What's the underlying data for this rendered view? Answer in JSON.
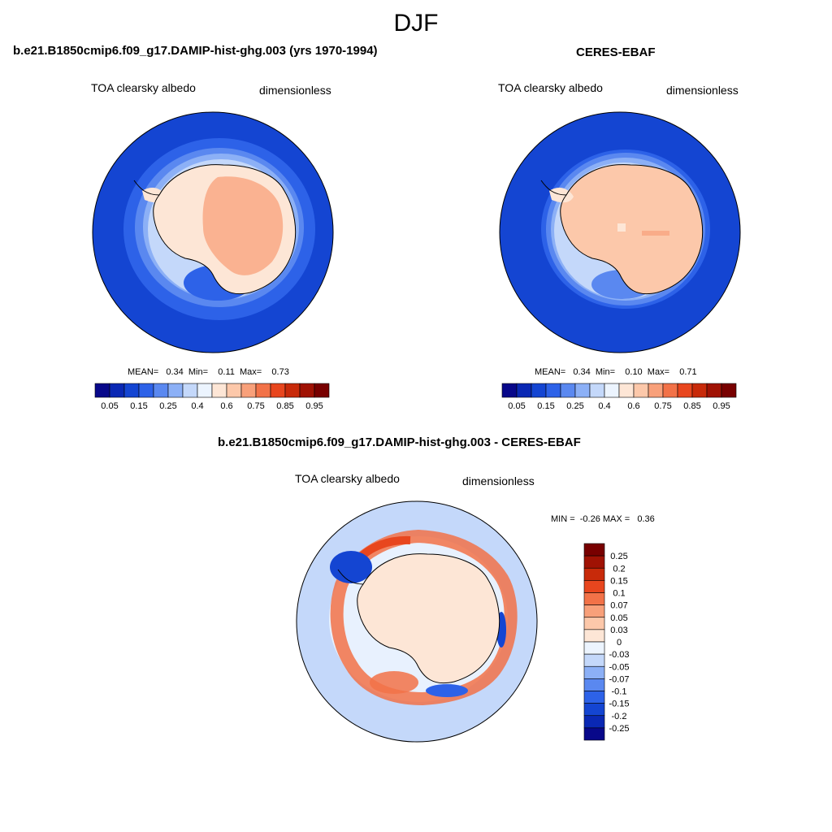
{
  "figure": {
    "season": "DJF"
  },
  "panels": {
    "model": {
      "title": "b.e21.B1850cmip6.f09_g17.DAMIP-hist-ghg.003 (yrs 1970-1994)",
      "variable": "TOA clearsky albedo",
      "units": "dimensionless",
      "stats": "MEAN=   0.34  Min=    0.11  Max=    0.73"
    },
    "obs": {
      "title": "CERES-EBAF",
      "variable": "TOA clearsky albedo",
      "units": "dimensionless",
      "stats": "MEAN=   0.34  Min=    0.10  Max=    0.71"
    },
    "diff": {
      "title": "b.e21.B1850cmip6.f09_g17.DAMIP-hist-ghg.003 - CERES-EBAF",
      "variable": "TOA clearsky albedo",
      "units": "dimensionless",
      "stats": "MIN =  -0.26 MAX =   0.36"
    }
  },
  "chart_data": [
    {
      "type": "heatmap",
      "projection": "south-polar-stereographic",
      "title": "b.e21.B1850cmip6.f09_g17.DAMIP-hist-ghg.003 (yrs 1970-1994)",
      "variable": "TOA clearsky albedo",
      "units": "dimensionless",
      "mean": 0.34,
      "min": 0.11,
      "max": 0.73,
      "colorbar": {
        "orientation": "horizontal",
        "tick_labels": [
          "0.05",
          "0.15",
          "0.25",
          "0.4",
          "0.6",
          "0.75",
          "0.85",
          "0.95"
        ],
        "colors": [
          "#08088a",
          "#0a28b4",
          "#1445d2",
          "#2d62e8",
          "#5a88f0",
          "#8cb0f6",
          "#c4d8fa",
          "#ecf4fe",
          "#fde6d6",
          "#fcc8aa",
          "#f8a07a",
          "#f27248",
          "#e8461e",
          "#c82a0a",
          "#a01204",
          "#780000"
        ]
      },
      "field_rings": [
        {
          "lat": -40,
          "value": 0.13
        },
        {
          "lat": -50,
          "value": 0.17
        },
        {
          "lat": -55,
          "value": 0.22
        },
        {
          "lat": -60,
          "value": 0.3
        },
        {
          "lat": -65,
          "value": 0.45
        },
        {
          "lat": -70,
          "value": 0.62
        },
        {
          "lat": -80,
          "value": 0.68
        }
      ]
    },
    {
      "type": "heatmap",
      "projection": "south-polar-stereographic",
      "title": "CERES-EBAF",
      "variable": "TOA clearsky albedo",
      "units": "dimensionless",
      "mean": 0.34,
      "min": 0.1,
      "max": 0.71,
      "colorbar": {
        "orientation": "horizontal",
        "tick_labels": [
          "0.05",
          "0.15",
          "0.25",
          "0.4",
          "0.6",
          "0.75",
          "0.85",
          "0.95"
        ],
        "colors": [
          "#08088a",
          "#0a28b4",
          "#1445d2",
          "#2d62e8",
          "#5a88f0",
          "#8cb0f6",
          "#c4d8fa",
          "#ecf4fe",
          "#fde6d6",
          "#fcc8aa",
          "#f8a07a",
          "#f27248",
          "#e8461e",
          "#c82a0a",
          "#a01204",
          "#780000"
        ]
      },
      "field_rings": [
        {
          "lat": -40,
          "value": 0.12
        },
        {
          "lat": -50,
          "value": 0.15
        },
        {
          "lat": -60,
          "value": 0.2
        },
        {
          "lat": -65,
          "value": 0.4
        },
        {
          "lat": -70,
          "value": 0.62
        },
        {
          "lat": -80,
          "value": 0.65
        }
      ]
    },
    {
      "type": "heatmap",
      "projection": "south-polar-stereographic",
      "title": "b.e21.B1850cmip6.f09_g17.DAMIP-hist-ghg.003 - CERES-EBAF",
      "variable": "TOA clearsky albedo",
      "units": "dimensionless",
      "min": -0.26,
      "max": 0.36,
      "colorbar": {
        "orientation": "vertical",
        "tick_labels": [
          "0.25",
          "0.2",
          "0.15",
          "0.1",
          "0.07",
          "0.05",
          "0.03",
          "0",
          "-0.03",
          "-0.05",
          "-0.07",
          "-0.1",
          "-0.15",
          "-0.2",
          "-0.25"
        ],
        "colors": [
          "#780000",
          "#a01204",
          "#c82a0a",
          "#e8461e",
          "#f27248",
          "#f8a07a",
          "#fcc8aa",
          "#fde6d6",
          "#ecf4fe",
          "#c4d8fa",
          "#8cb0f6",
          "#5a88f0",
          "#2d62e8",
          "#1445d2",
          "#0a28b4",
          "#08088a"
        ]
      },
      "field_rings": [
        {
          "lat": -40,
          "value": 0.0
        },
        {
          "lat": -55,
          "value": 0.01
        },
        {
          "lat": -62,
          "value": 0.07
        },
        {
          "lat": -66,
          "value": -0.05
        },
        {
          "lat": -75,
          "value": 0.02
        }
      ]
    }
  ]
}
